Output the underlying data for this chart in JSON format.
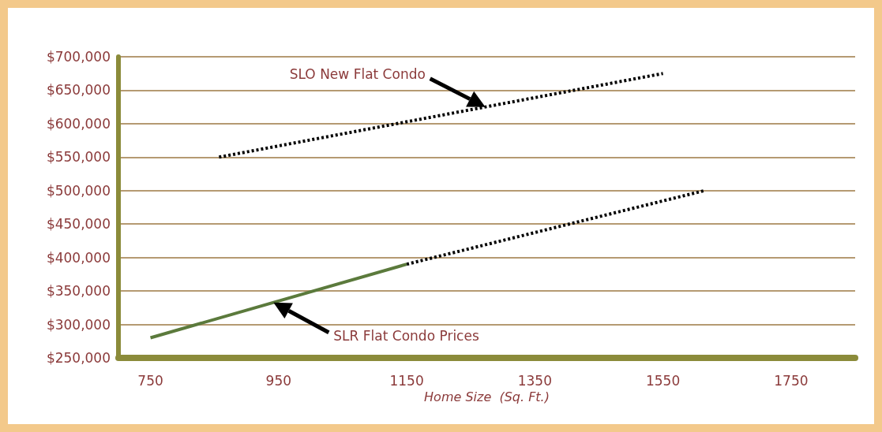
{
  "chart_data": {
    "type": "line",
    "xlabel": "Home Size  (Sq. Ft.)",
    "xlim": [
      700,
      1850
    ],
    "xticks": [
      750,
      950,
      1150,
      1350,
      1550,
      1750
    ],
    "ylim": [
      250000,
      700000
    ],
    "yticks": [
      {
        "value": 250000,
        "label": "$250,000"
      },
      {
        "value": 300000,
        "label": "$300,000"
      },
      {
        "value": 350000,
        "label": "$350,000"
      },
      {
        "value": 400000,
        "label": "$400,000"
      },
      {
        "value": 450000,
        "label": "$450,000"
      },
      {
        "value": 500000,
        "label": "$500,000"
      },
      {
        "value": 550000,
        "label": "$550,000"
      },
      {
        "value": 600000,
        "label": "$600,000"
      },
      {
        "value": 650000,
        "label": "$650,000"
      },
      {
        "value": 700000,
        "label": "$700,000"
      }
    ],
    "grid": "y",
    "marker": "none",
    "series": [
      {
        "color": "#000000",
        "line_style": "dotted",
        "x": [
          857,
          1550
        ],
        "values": [
          550000,
          675000
        ]
      },
      {
        "color": "#5b7a3c",
        "line_style": "solid",
        "x": [
          750,
          1150
        ],
        "values": [
          280000,
          390000
        ]
      },
      {
        "color": "#000000",
        "line_style": "dotted",
        "x": [
          1150,
          1615
        ],
        "values": [
          390000,
          500000
        ]
      }
    ],
    "annotations": [
      "SLO New Flat Condo",
      "SLR Flat Condo Prices"
    ]
  }
}
